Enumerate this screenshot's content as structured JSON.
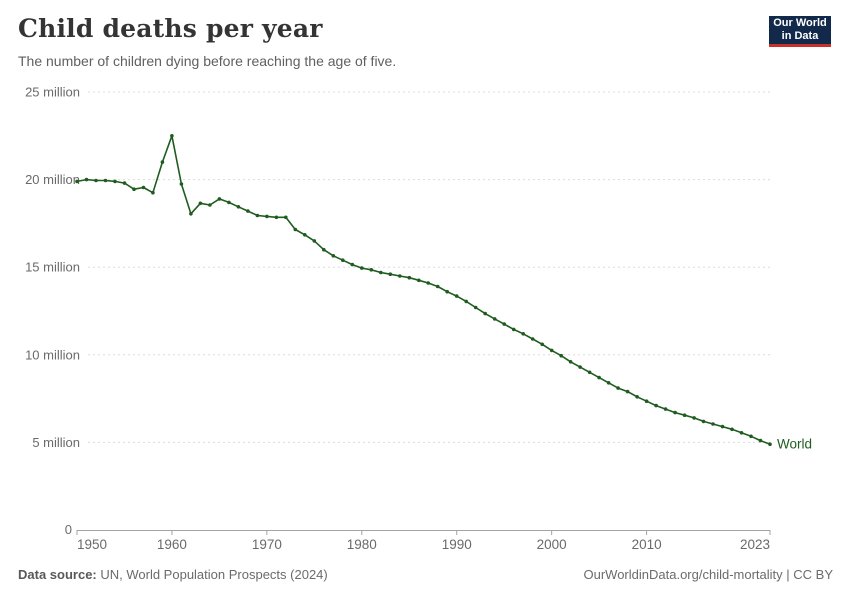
{
  "header": {
    "title": "Child deaths per year",
    "subtitle": "The number of children dying before reaching the age of five.",
    "logo_line1": "Our World",
    "logo_line2": "in Data"
  },
  "footer": {
    "source_label": "Data source:",
    "source_text": " UN, World Population Prospects (2024)",
    "link_text": "OurWorldinData.org/child-mortality | CC BY"
  },
  "colors": {
    "line": "#1f5c1f",
    "grid": "#dcdcdc",
    "axis": "#a3a3a3",
    "tick_label": "#6a6a6a",
    "title": "#343434",
    "logo_bg": "#12294b",
    "logo_accent": "#c7302b"
  },
  "chart_data": {
    "type": "line",
    "title": "Child deaths per year",
    "xlabel": "",
    "ylabel": "",
    "unit": "million",
    "grid": true,
    "xlim": [
      1950,
      2023
    ],
    "ylim": [
      0,
      25
    ],
    "x_ticks": [
      1950,
      1960,
      1970,
      1980,
      1990,
      2000,
      2010,
      2023
    ],
    "y_ticks": [
      0,
      5,
      10,
      15,
      20,
      25
    ],
    "y_tick_labels": [
      "0",
      "5 million",
      "10 million",
      "15 million",
      "20 million",
      "25 million"
    ],
    "end_label": "World",
    "series": [
      {
        "name": "World",
        "years": [
          1950,
          1951,
          1952,
          1953,
          1954,
          1955,
          1956,
          1957,
          1958,
          1959,
          1960,
          1961,
          1962,
          1963,
          1964,
          1965,
          1966,
          1967,
          1968,
          1969,
          1970,
          1971,
          1972,
          1973,
          1974,
          1975,
          1976,
          1977,
          1978,
          1979,
          1980,
          1981,
          1982,
          1983,
          1984,
          1985,
          1986,
          1987,
          1988,
          1989,
          1990,
          1991,
          1992,
          1993,
          1994,
          1995,
          1996,
          1997,
          1998,
          1999,
          2000,
          2001,
          2002,
          2003,
          2004,
          2005,
          2006,
          2007,
          2008,
          2009,
          2010,
          2011,
          2012,
          2013,
          2014,
          2015,
          2016,
          2017,
          2018,
          2019,
          2020,
          2021,
          2022,
          2023
        ],
        "values": [
          19.9,
          20.0,
          19.95,
          19.95,
          19.9,
          19.8,
          19.45,
          19.55,
          19.25,
          21.0,
          22.5,
          19.75,
          18.05,
          18.65,
          18.55,
          18.9,
          18.7,
          18.45,
          18.2,
          17.95,
          17.9,
          17.85,
          17.85,
          17.15,
          16.85,
          16.5,
          16.0,
          15.65,
          15.4,
          15.15,
          14.95,
          14.85,
          14.7,
          14.6,
          14.5,
          14.4,
          14.25,
          14.1,
          13.9,
          13.6,
          13.35,
          13.05,
          12.7,
          12.35,
          12.05,
          11.75,
          11.45,
          11.2,
          10.9,
          10.6,
          10.25,
          9.95,
          9.6,
          9.3,
          9.0,
          8.7,
          8.4,
          8.1,
          7.9,
          7.6,
          7.35,
          7.1,
          6.9,
          6.7,
          6.55,
          6.4,
          6.2,
          6.05,
          5.9,
          5.75,
          5.55,
          5.35,
          5.1,
          4.9
        ]
      }
    ]
  }
}
